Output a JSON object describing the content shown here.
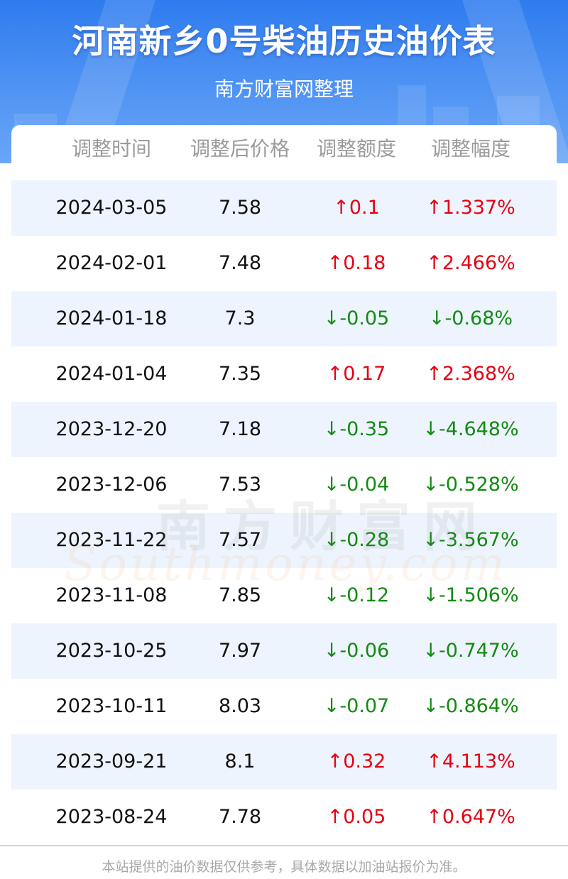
{
  "header": {
    "title": "河南新乡0号柴油历史油价表",
    "subtitle": "南方财富网整理"
  },
  "table": {
    "columns": [
      "调整时间",
      "调整后价格",
      "调整额度",
      "调整幅度"
    ],
    "rows": [
      {
        "date": "2024-03-05",
        "price": "7.58",
        "change": "↑0.1",
        "pct": "↑1.337%",
        "dir": "up"
      },
      {
        "date": "2024-02-01",
        "price": "7.48",
        "change": "↑0.18",
        "pct": "↑2.466%",
        "dir": "up"
      },
      {
        "date": "2024-01-18",
        "price": "7.3",
        "change": "↓-0.05",
        "pct": "↓-0.68%",
        "dir": "down"
      },
      {
        "date": "2024-01-04",
        "price": "7.35",
        "change": "↑0.17",
        "pct": "↑2.368%",
        "dir": "up"
      },
      {
        "date": "2023-12-20",
        "price": "7.18",
        "change": "↓-0.35",
        "pct": "↓-4.648%",
        "dir": "down"
      },
      {
        "date": "2023-12-06",
        "price": "7.53",
        "change": "↓-0.04",
        "pct": "↓-0.528%",
        "dir": "down"
      },
      {
        "date": "2023-11-22",
        "price": "7.57",
        "change": "↓-0.28",
        "pct": "↓-3.567%",
        "dir": "down"
      },
      {
        "date": "2023-11-08",
        "price": "7.85",
        "change": "↓-0.12",
        "pct": "↓-1.506%",
        "dir": "down"
      },
      {
        "date": "2023-10-25",
        "price": "7.97",
        "change": "↓-0.06",
        "pct": "↓-0.747%",
        "dir": "down"
      },
      {
        "date": "2023-10-11",
        "price": "8.03",
        "change": "↓-0.07",
        "pct": "↓-0.864%",
        "dir": "down"
      },
      {
        "date": "2023-09-21",
        "price": "8.1",
        "change": "↑0.32",
        "pct": "↑4.113%",
        "dir": "up"
      },
      {
        "date": "2023-08-24",
        "price": "7.78",
        "change": "↑0.05",
        "pct": "↑0.647%",
        "dir": "up"
      }
    ]
  },
  "watermark": {
    "cn": "南方财富网",
    "en": "Southmoney.com"
  },
  "footer": {
    "note": "本站提供的油价数据仅供参考，具体数据以加油站报价为准。"
  },
  "colors": {
    "header_blue": "#2f7cf0",
    "row_shade": "#eef4fd",
    "up_red": "#e60012",
    "down_green": "#128a12"
  }
}
